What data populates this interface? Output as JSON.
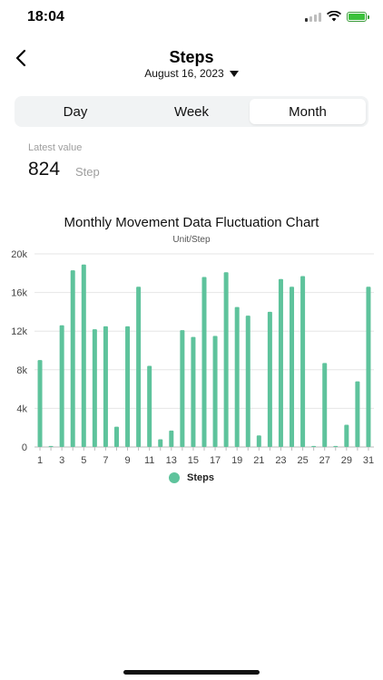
{
  "status_bar": {
    "time": "18:04"
  },
  "header": {
    "title": "Steps",
    "date": "August 16, 2023"
  },
  "tabs": [
    {
      "label": "Day",
      "active": false
    },
    {
      "label": "Week",
      "active": false
    },
    {
      "label": "Month",
      "active": true
    }
  ],
  "latest": {
    "label": "Latest  value",
    "value": "824",
    "unit": "Step"
  },
  "colors": {
    "bar": "#5ec39c",
    "grid": "#e6e6e6"
  },
  "chart_data": {
    "type": "bar",
    "title": "Monthly Movement Data Fluctuation Chart",
    "subtitle": "Unit/Step",
    "ylim": [
      0,
      20000
    ],
    "yticks": [
      0,
      4000,
      8000,
      12000,
      16000,
      20000
    ],
    "ytick_labels": [
      "0",
      "4k",
      "8k",
      "12k",
      "16k",
      "20k"
    ],
    "categories": [
      1,
      2,
      3,
      4,
      5,
      6,
      7,
      8,
      9,
      10,
      11,
      12,
      13,
      14,
      15,
      16,
      17,
      18,
      19,
      20,
      21,
      22,
      23,
      24,
      25,
      26,
      27,
      28,
      29,
      30,
      31
    ],
    "xtick_labels": [
      "1",
      "3",
      "5",
      "7",
      "9",
      "11",
      "13",
      "15",
      "17",
      "19",
      "21",
      "23",
      "25",
      "27",
      "29",
      "31"
    ],
    "grid": true,
    "legend_position": "bottom",
    "series": [
      {
        "name": "Steps",
        "values": [
          9000,
          100,
          12600,
          18300,
          18900,
          12200,
          12500,
          2100,
          12500,
          16600,
          8400,
          800,
          1700,
          12100,
          11400,
          17600,
          11500,
          18100,
          14500,
          13600,
          1200,
          14000,
          17400,
          16600,
          17700,
          100,
          8700,
          100,
          2300,
          6800,
          16600
        ]
      }
    ]
  }
}
